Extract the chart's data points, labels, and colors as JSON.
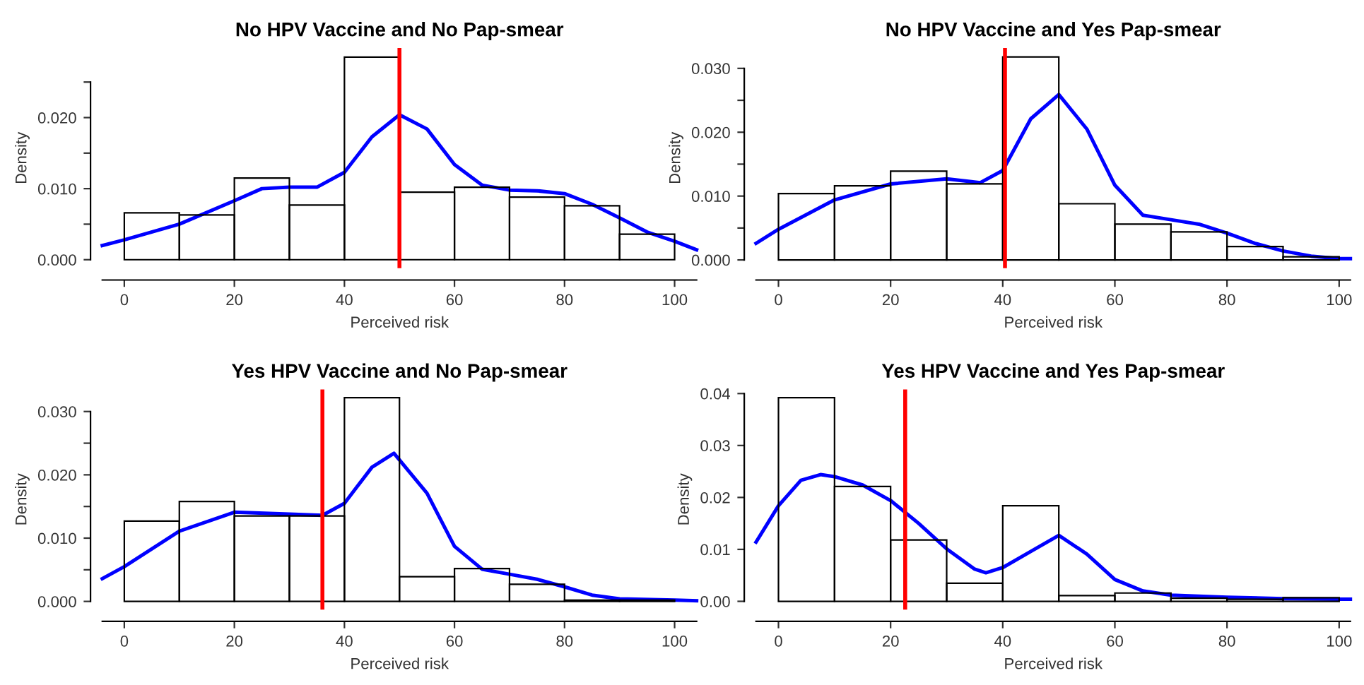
{
  "chart_data": [
    {
      "type": "histogram",
      "title": "No HPV Vaccine and No Pap-smear",
      "xlabel": "Perceived risk",
      "ylabel": "Density",
      "series": [
        {
          "type": "histogram",
          "color": "#000000",
          "bins": [
            0,
            10,
            20,
            30,
            40,
            50,
            60,
            70,
            80,
            90,
            100
          ],
          "values": [
            0.0066,
            0.0063,
            0.0115,
            0.0077,
            0.0285,
            0.0095,
            0.0102,
            0.0088,
            0.0076,
            0.0036
          ]
        },
        {
          "type": "line",
          "color": "#0000ff",
          "x": [
            -4,
            0,
            10,
            20,
            25,
            30,
            35,
            40,
            45,
            50,
            55,
            60,
            65,
            70,
            75,
            80,
            85,
            90,
            95,
            100,
            104
          ],
          "values": [
            0.002,
            0.0028,
            0.005,
            0.0083,
            0.01,
            0.0102,
            0.0102,
            0.0123,
            0.0173,
            0.0204,
            0.0184,
            0.0134,
            0.0105,
            0.0098,
            0.0097,
            0.0093,
            0.0078,
            0.0059,
            0.0039,
            0.0026,
            0.0014
          ]
        }
      ],
      "ref_lines": [
        {
          "axis": "x",
          "value": 50,
          "color": "#ff0000"
        }
      ],
      "xlim": [
        -4,
        104
      ],
      "xticks": [
        0,
        20,
        40,
        60,
        80,
        100
      ],
      "ylim": [
        -0.0012,
        0.0298
      ],
      "yticks": [
        {
          "value": 0,
          "label": "0.000"
        },
        {
          "value": 0.005,
          "label": null
        },
        {
          "value": 0.01,
          "label": "0.010"
        },
        {
          "value": 0.015,
          "label": null
        },
        {
          "value": 0.02,
          "label": "0.020"
        },
        {
          "value": 0.025,
          "label": null
        }
      ]
    },
    {
      "type": "histogram",
      "title": "No HPV Vaccine and Yes Pap-smear",
      "xlabel": "Perceived risk",
      "ylabel": "Density",
      "series": [
        {
          "type": "histogram",
          "color": "#000000",
          "bins": [
            0,
            10,
            20,
            30,
            40,
            50,
            60,
            70,
            80,
            90,
            100
          ],
          "values": [
            0.0104,
            0.0116,
            0.0139,
            0.0119,
            0.0318,
            0.0088,
            0.0056,
            0.0044,
            0.0021,
            0.0005
          ]
        },
        {
          "type": "line",
          "color": "#0000ff",
          "x": [
            -4,
            0,
            10,
            20,
            30,
            36,
            40,
            45,
            50,
            55,
            60,
            65,
            70,
            75,
            80,
            85,
            90,
            95,
            100,
            102
          ],
          "values": [
            0.0026,
            0.0048,
            0.0094,
            0.0119,
            0.0127,
            0.0121,
            0.014,
            0.0221,
            0.0259,
            0.0205,
            0.0117,
            0.007,
            0.0063,
            0.0056,
            0.0042,
            0.0026,
            0.0014,
            0.0006,
            0.0002,
            0.0002
          ]
        }
      ],
      "ref_lines": [
        {
          "axis": "x",
          "value": 40.4,
          "color": "#ff0000"
        }
      ],
      "xlim": [
        -4,
        102
      ],
      "xticks": [
        0,
        20,
        40,
        60,
        80,
        100
      ],
      "ylim": [
        -0.0013,
        0.0332
      ],
      "yticks": [
        {
          "value": 0,
          "label": "0.000"
        },
        {
          "value": 0.005,
          "label": null
        },
        {
          "value": 0.01,
          "label": "0.010"
        },
        {
          "value": 0.015,
          "label": null
        },
        {
          "value": 0.02,
          "label": "0.020"
        },
        {
          "value": 0.025,
          "label": null
        },
        {
          "value": 0.03,
          "label": "0.030"
        }
      ]
    },
    {
      "type": "histogram",
      "title": "Yes HPV Vaccine and No Pap-smear",
      "xlabel": "Perceived risk",
      "ylabel": "Density",
      "series": [
        {
          "type": "histogram",
          "color": "#000000",
          "bins": [
            0,
            10,
            20,
            30,
            40,
            50,
            60,
            70,
            80,
            90,
            100
          ],
          "values": [
            0.0127,
            0.0158,
            0.0135,
            0.0135,
            0.0322,
            0.0039,
            0.0052,
            0.0027,
            0.0002,
            0.0002
          ]
        },
        {
          "type": "line",
          "color": "#0000ff",
          "x": [
            -4,
            0,
            10,
            20,
            30,
            36,
            40,
            45,
            49,
            55,
            60,
            65,
            70,
            75,
            80,
            85,
            90,
            100,
            104
          ],
          "values": [
            0.0036,
            0.0055,
            0.0111,
            0.0141,
            0.0138,
            0.0136,
            0.0155,
            0.0212,
            0.0234,
            0.0171,
            0.0087,
            0.0051,
            0.0043,
            0.0035,
            0.0023,
            0.001,
            0.0004,
            0.0002,
            0.0001
          ]
        }
      ],
      "ref_lines": [
        {
          "axis": "x",
          "value": 36,
          "color": "#ff0000"
        }
      ],
      "xlim": [
        -4,
        104
      ],
      "xticks": [
        0,
        20,
        40,
        60,
        80,
        100
      ],
      "ylim": [
        -0.0013,
        0.0335
      ],
      "yticks": [
        {
          "value": 0,
          "label": "0.000"
        },
        {
          "value": 0.005,
          "label": null
        },
        {
          "value": 0.01,
          "label": "0.010"
        },
        {
          "value": 0.015,
          "label": null
        },
        {
          "value": 0.02,
          "label": "0.020"
        },
        {
          "value": 0.025,
          "label": null
        },
        {
          "value": 0.03,
          "label": "0.030"
        }
      ]
    },
    {
      "type": "histogram",
      "title": "Yes HPV Vaccine and Yes Pap-smear",
      "xlabel": "Perceived risk",
      "ylabel": "Density",
      "series": [
        {
          "type": "histogram",
          "color": "#000000",
          "bins": [
            0,
            10,
            20,
            30,
            40,
            50,
            60,
            70,
            80,
            90,
            100
          ],
          "values": [
            0.0392,
            0.0221,
            0.0118,
            0.0035,
            0.0184,
            0.0011,
            0.0016,
            0.0006,
            0.0004,
            0.0007
          ]
        },
        {
          "type": "line",
          "color": "#0000ff",
          "x": [
            -4,
            0,
            4,
            7.5,
            10,
            15,
            20,
            25,
            30,
            35,
            37,
            40,
            45,
            50,
            55,
            60,
            65,
            70,
            80,
            90,
            100,
            102
          ],
          "values": [
            0.0114,
            0.0184,
            0.0233,
            0.0244,
            0.024,
            0.0224,
            0.0194,
            0.015,
            0.0101,
            0.0062,
            0.0055,
            0.0065,
            0.0096,
            0.0127,
            0.0091,
            0.0042,
            0.002,
            0.0012,
            0.0008,
            0.0005,
            0.0004,
            0.0004
          ]
        }
      ],
      "ref_lines": [
        {
          "axis": "x",
          "value": 22.6,
          "color": "#ff0000"
        }
      ],
      "xlim": [
        -4,
        102
      ],
      "xticks": [
        0,
        20,
        40,
        60,
        80,
        100
      ],
      "ylim": [
        -0.0016,
        0.0408
      ],
      "yticks": [
        {
          "value": 0,
          "label": "0.00"
        },
        {
          "value": 0.01,
          "label": "0.01"
        },
        {
          "value": 0.02,
          "label": "0.02"
        },
        {
          "value": 0.03,
          "label": "0.03"
        },
        {
          "value": 0.04,
          "label": "0.04"
        }
      ]
    }
  ]
}
